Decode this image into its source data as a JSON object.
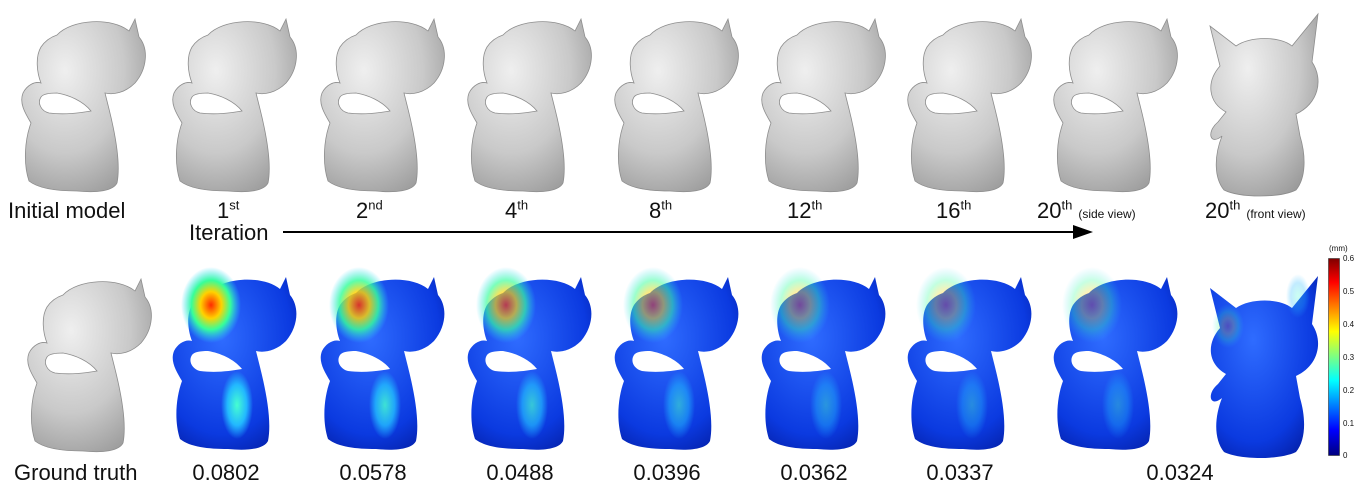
{
  "top_row": {
    "labels": [
      {
        "text": "Initial model",
        "sup": "",
        "note": ""
      },
      {
        "text": "1",
        "sup": "st",
        "note": ""
      },
      {
        "text": "2",
        "sup": "nd",
        "note": ""
      },
      {
        "text": "4",
        "sup": "th",
        "note": ""
      },
      {
        "text": "8",
        "sup": "th",
        "note": ""
      },
      {
        "text": "12",
        "sup": "th",
        "note": ""
      },
      {
        "text": "16",
        "sup": "th",
        "note": ""
      },
      {
        "text": "20",
        "sup": "th",
        "note": "(side view)"
      },
      {
        "text": "20",
        "sup": "th",
        "note": "(front view)"
      }
    ],
    "iteration_label": "Iteration"
  },
  "bottom_row": {
    "ground_truth_label": "Ground truth",
    "error_values": [
      "0.0802",
      "0.0578",
      "0.0488",
      "0.0396",
      "0.0362",
      "0.0337",
      "0.0324"
    ]
  },
  "colorbar": {
    "unit": "(mm)",
    "ticks": [
      "0.6",
      "0.5",
      "0.4",
      "0.3",
      "0.2",
      "0.1",
      "0"
    ],
    "colors": [
      "#7f0000",
      "#ff0000",
      "#ffff00",
      "#00ffff",
      "#0000ff",
      "#00007f"
    ]
  },
  "mesh_color": "#c8c8c8",
  "error_heat_levels": [
    1.0,
    0.82,
    0.66,
    0.5,
    0.36,
    0.3,
    0.28,
    0.2
  ]
}
